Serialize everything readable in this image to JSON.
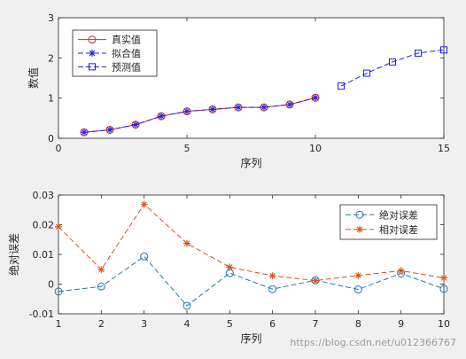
{
  "chart_data": [
    {
      "type": "line",
      "xlabel": "序列",
      "ylabel": "数值",
      "xlim": [
        0,
        15
      ],
      "ylim": [
        0,
        3
      ],
      "x_ticks": [
        0,
        5,
        10,
        15
      ],
      "y_ticks": [
        0,
        1,
        2,
        3
      ],
      "grid": false,
      "legend_position": "top-left",
      "series": [
        {
          "name": "真实值",
          "color": "#d62728",
          "line": "solid",
          "marker": "circle",
          "x": [
            1,
            2,
            3,
            4,
            5,
            6,
            7,
            8,
            9,
            10
          ],
          "y": [
            0.15,
            0.21,
            0.34,
            0.55,
            0.67,
            0.72,
            0.77,
            0.77,
            0.84,
            1.01
          ]
        },
        {
          "name": "拟合值",
          "color": "#1f1fe8",
          "line": "dashed",
          "marker": "asterisk",
          "x": [
            1,
            2,
            3,
            4,
            5,
            6,
            7,
            8,
            9,
            10
          ],
          "y": [
            0.15,
            0.21,
            0.34,
            0.55,
            0.67,
            0.72,
            0.77,
            0.77,
            0.84,
            1.01
          ]
        },
        {
          "name": "预测值",
          "color": "#1f1fe8",
          "line": "dashed",
          "marker": "square",
          "x": [
            11,
            12,
            13,
            14,
            15
          ],
          "y": [
            1.3,
            1.62,
            1.9,
            2.12,
            2.2
          ]
        }
      ]
    },
    {
      "type": "line",
      "xlabel": "序列",
      "ylabel": "绝对误差",
      "xlim": [
        1,
        10
      ],
      "ylim": [
        -0.01,
        0.03
      ],
      "x_ticks": [
        1,
        2,
        3,
        4,
        5,
        6,
        7,
        8,
        9,
        10
      ],
      "y_ticks": [
        -0.01,
        0,
        0.01,
        0.02,
        0.03
      ],
      "y_tick_labels": [
        "-0.01",
        "0",
        "0.01",
        "0.02",
        "0.03"
      ],
      "grid": false,
      "legend_position": "top-right",
      "series": [
        {
          "name": "绝对误差",
          "color": "#1f77b4",
          "line": "dashed",
          "marker": "circle",
          "x": [
            1,
            2,
            3,
            4,
            5,
            6,
            7,
            8,
            9,
            10
          ],
          "y": [
            -0.0025,
            -0.0008,
            0.0093,
            -0.0073,
            0.0037,
            -0.0017,
            0.0013,
            -0.0018,
            0.0036,
            -0.0016
          ]
        },
        {
          "name": "相对误差",
          "color": "#d95319",
          "line": "dashed",
          "marker": "asterisk",
          "x": [
            1,
            2,
            3,
            4,
            5,
            6,
            7,
            8,
            9,
            10
          ],
          "y": [
            0.0193,
            0.0049,
            0.0269,
            0.0137,
            0.0057,
            0.0028,
            0.0012,
            0.0029,
            0.0045,
            0.0021
          ]
        }
      ]
    }
  ],
  "watermark": "https://blog.csdn.net/u012366767"
}
